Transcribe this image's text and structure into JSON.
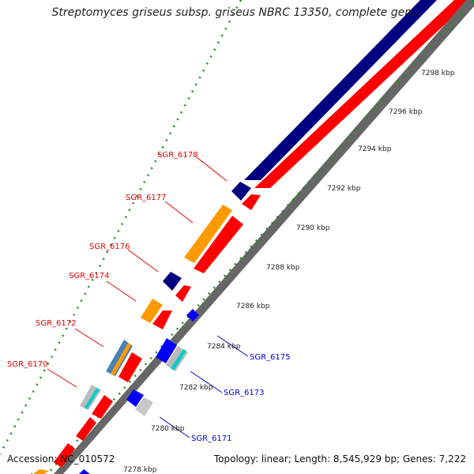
{
  "title": "Streptomyces griseus subsp. griseus NBRC 13350, complete gen...",
  "footer": {
    "accession": "Accession: NC_010572",
    "topology": "Topology: linear; Length: 8,545,929 bp; Genes: 7,222"
  },
  "scale_ticks": [
    "7298 kbp",
    "7296 kbp",
    "7294 kbp",
    "7292 kbp",
    "7290 kbp",
    "7288 kbp",
    "7286 kbp",
    "7284 kbp",
    "7282 kbp",
    "7280 kbp",
    "7278 kbp"
  ],
  "gene_labels_left": [
    "SGR_6178",
    "SGR_6177",
    "SGR_6176",
    "SGR_6174",
    "SGR_6172",
    "SGR_6170"
  ],
  "gene_labels_right": [
    "SGR_6175",
    "SGR_6173",
    "SGR_6171"
  ],
  "colors": {
    "left_label": "#e00000",
    "right_label": "#0000cc",
    "navy": "#000080",
    "red": "#ff0000",
    "orange": "#ff9900",
    "blue": "#0000ff",
    "gray_backbone": "#888888",
    "tick_green": "#008000",
    "steel_blue": "#4682b4",
    "cyan": "#00cccc",
    "light_gray": "#c8c8c8"
  }
}
